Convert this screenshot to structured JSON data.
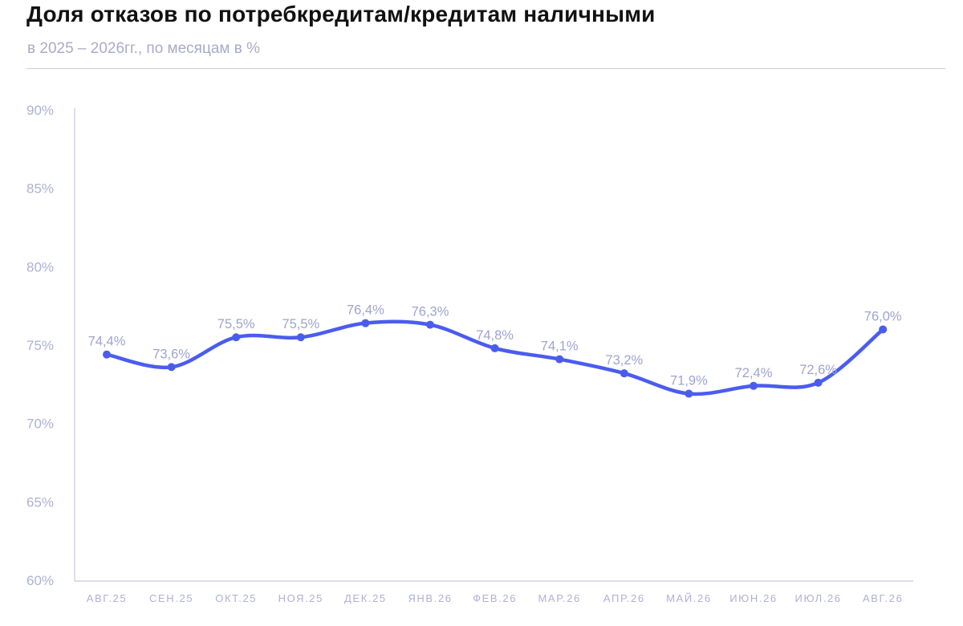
{
  "title": "Доля отказов по потребкредитам/кредитам наличными",
  "subtitle": "в 2025 – 2026гг., по месяцам в %",
  "colors": {
    "line": "#4a5cf0",
    "axis": "#c7c9e0",
    "tick_text": "#aeb1d3",
    "label_text": "#9fa3cf"
  },
  "chart_data": {
    "type": "line",
    "title": "Доля отказов по потребкредитам/кредитам наличными",
    "subtitle": "в 2025 – 2026гг., по месяцам в %",
    "xlabel": "",
    "ylabel": "",
    "categories": [
      "АВГ.25",
      "СЕН.25",
      "ОКТ.25",
      "НОЯ.25",
      "ДЕК.25",
      "ЯНВ.26",
      "ФЕВ.26",
      "МАР.26",
      "АПР.26",
      "МАЙ.26",
      "ИЮН.26",
      "ИЮЛ.26",
      "АВГ.26"
    ],
    "values": [
      74.4,
      73.6,
      75.5,
      75.5,
      76.4,
      76.3,
      74.8,
      74.1,
      73.2,
      71.9,
      72.4,
      72.6,
      76.0
    ],
    "data_labels": [
      "74,4%",
      "73,6%",
      "75,5%",
      "75,5%",
      "76,4%",
      "76,3%",
      "74,8%",
      "74,1%",
      "73,2%",
      "71,9%",
      "72,4%",
      "72,6%",
      "76,0%"
    ],
    "y_ticks": [
      60,
      65,
      70,
      75,
      80,
      85,
      90
    ],
    "y_tick_labels": [
      "60%",
      "65%",
      "70%",
      "75%",
      "80%",
      "85%",
      "90%"
    ],
    "ylim": [
      60,
      90
    ],
    "grid": false,
    "legend": "none",
    "smooth": true
  }
}
